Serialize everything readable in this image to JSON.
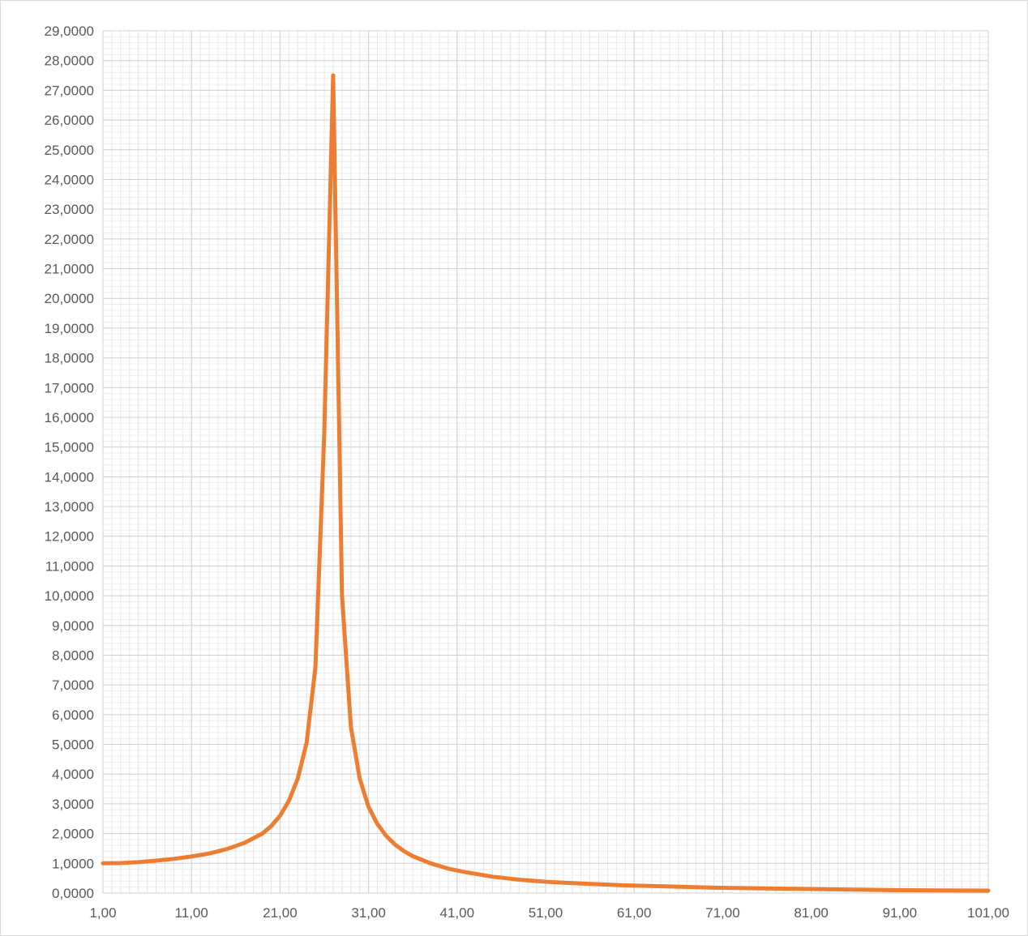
{
  "chart_data": {
    "type": "line",
    "title": "",
    "xlabel": "",
    "ylabel": "",
    "xlim": [
      1,
      101
    ],
    "ylim": [
      0,
      29
    ],
    "grid": true,
    "legend": "none",
    "x_ticks": [
      "1,00",
      "11,00",
      "21,00",
      "31,00",
      "41,00",
      "51,00",
      "61,00",
      "71,00",
      "81,00",
      "91,00",
      "101,00"
    ],
    "y_ticks": [
      "0,0000",
      "1,0000",
      "2,0000",
      "3,0000",
      "4,0000",
      "5,0000",
      "6,0000",
      "7,0000",
      "8,0000",
      "9,0000",
      "10,0000",
      "11,0000",
      "12,0000",
      "13,0000",
      "14,0000",
      "15,0000",
      "16,0000",
      "17,0000",
      "18,0000",
      "19,0000",
      "20,0000",
      "21,0000",
      "22,0000",
      "23,0000",
      "24,0000",
      "25,0000",
      "26,0000",
      "27,0000",
      "28,0000",
      "29,0000"
    ],
    "series": [
      {
        "color": "#ed7d31",
        "x": [
          1,
          3,
          5,
          7,
          9,
          11,
          13,
          15,
          17,
          19,
          20,
          21,
          22,
          23,
          24,
          25,
          26,
          27,
          28,
          29,
          30,
          31,
          32,
          33,
          34,
          35,
          36,
          38,
          40,
          42,
          45,
          48,
          51,
          55,
          60,
          65,
          70,
          75,
          80,
          85,
          90,
          95,
          101
        ],
        "y": [
          1.0,
          1.01,
          1.04,
          1.09,
          1.15,
          1.23,
          1.33,
          1.48,
          1.69,
          2.0,
          2.25,
          2.6,
          3.1,
          3.85,
          5.05,
          7.6,
          15.5,
          27.5,
          10.0,
          5.6,
          3.85,
          2.9,
          2.32,
          1.92,
          1.63,
          1.41,
          1.24,
          1.0,
          0.82,
          0.7,
          0.55,
          0.45,
          0.38,
          0.32,
          0.26,
          0.22,
          0.18,
          0.16,
          0.14,
          0.12,
          0.1,
          0.09,
          0.08
        ]
      }
    ]
  }
}
